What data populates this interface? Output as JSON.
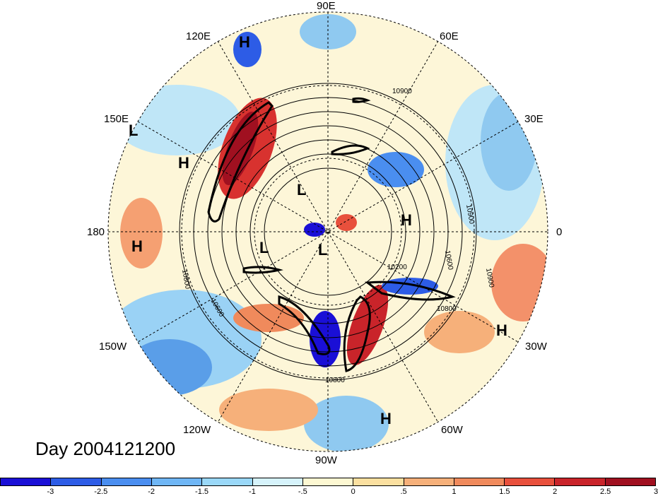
{
  "title": "Day 2004121200",
  "lon_labels": {
    "e90": "90E",
    "e120": "120E",
    "e60": "60E",
    "e150": "150E",
    "e30": "30E",
    "w180": "180",
    "zero": "0",
    "w150": "150W",
    "w30": "30W",
    "w120": "120W",
    "w60": "60W",
    "w90": "90W"
  },
  "pressure_centers": [
    {
      "label": "H"
    },
    {
      "label": "L"
    },
    {
      "label": "H"
    },
    {
      "label": "H"
    },
    {
      "label": "L"
    },
    {
      "label": "L"
    },
    {
      "label": "L"
    },
    {
      "label": "H"
    },
    {
      "label": "H"
    },
    {
      "label": "H"
    }
  ],
  "contour_labels": [
    "10900",
    "10900",
    "10800",
    "10600",
    "10200",
    "10800",
    "10900",
    "10600",
    "10800"
  ],
  "colorbar": {
    "colors": [
      "#1a0fd6",
      "#2d5ce6",
      "#4a8ef0",
      "#6fb6f5",
      "#9ad8f8",
      "#d6f3fb",
      "#fdf8d2",
      "#fbe0a0",
      "#f6b07a",
      "#f08a5c",
      "#e8503c",
      "#c9242a",
      "#a01020"
    ],
    "ticks": [
      "-3",
      "-2.5",
      "-2",
      "-1.5",
      "-1",
      "-.5",
      "0",
      ".5",
      "1",
      "1.5",
      "2",
      "2.5",
      "3"
    ]
  }
}
